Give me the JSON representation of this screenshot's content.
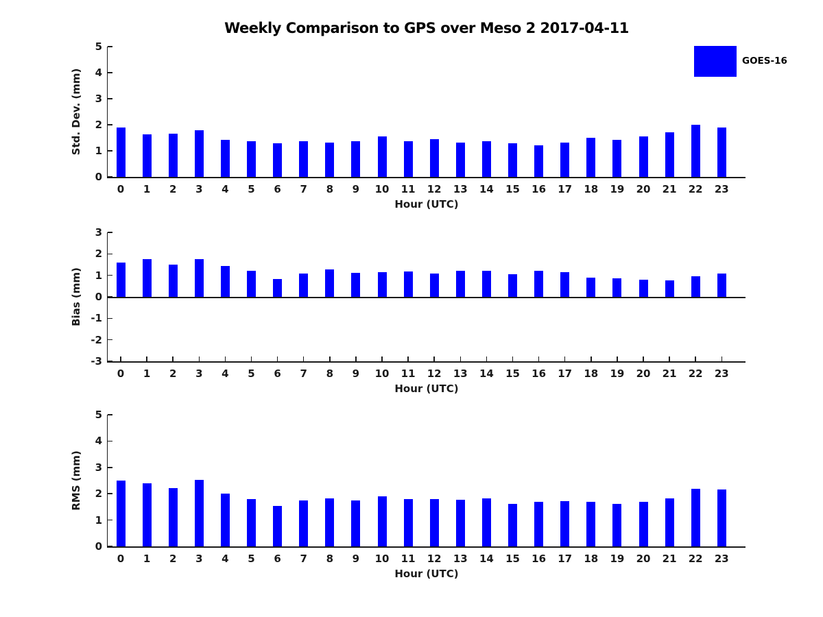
{
  "header": {
    "title": "Weekly Comparison to GPS over Meso 2 2017-04-11"
  },
  "legend": {
    "label": "GOES-16",
    "color": "#0000ff"
  },
  "colors": {
    "bar": "#0000ff",
    "axis": "#1a1a1a",
    "text": "#191919"
  },
  "chart_data": [
    {
      "type": "bar",
      "title": "Weekly Comparison to GPS over Meso 2 2017-04-11",
      "series_name": "GOES-16",
      "ylabel": "Std. Dev. (mm)",
      "xlabel": "Hour (UTC)",
      "ylim": [
        0,
        5
      ],
      "yticks": [
        0,
        1,
        2,
        3,
        4,
        5
      ],
      "categories": [
        "0",
        "1",
        "2",
        "3",
        "4",
        "5",
        "6",
        "7",
        "8",
        "9",
        "10",
        "11",
        "12",
        "13",
        "14",
        "15",
        "16",
        "17",
        "18",
        "19",
        "20",
        "21",
        "22",
        "23"
      ],
      "values": [
        1.9,
        1.63,
        1.65,
        1.8,
        1.42,
        1.36,
        1.28,
        1.38,
        1.31,
        1.36,
        1.55,
        1.38,
        1.46,
        1.31,
        1.36,
        1.29,
        1.21,
        1.32,
        1.5,
        1.42,
        1.55,
        1.72,
        2.0,
        1.9
      ]
    },
    {
      "type": "bar",
      "series_name": "GOES-16",
      "ylabel": "Bias (mm)",
      "xlabel": "Hour (UTC)",
      "ylim": [
        -3,
        3
      ],
      "yticks": [
        -3,
        -2,
        -1,
        0,
        1,
        2,
        3
      ],
      "categories": [
        "0",
        "1",
        "2",
        "3",
        "4",
        "5",
        "6",
        "7",
        "8",
        "9",
        "10",
        "11",
        "12",
        "13",
        "14",
        "15",
        "16",
        "17",
        "18",
        "19",
        "20",
        "21",
        "22",
        "23"
      ],
      "values": [
        1.6,
        1.77,
        1.5,
        1.77,
        1.43,
        1.2,
        0.83,
        1.08,
        1.28,
        1.12,
        1.14,
        1.17,
        1.08,
        1.22,
        1.21,
        1.05,
        1.2,
        1.16,
        0.89,
        0.85,
        0.8,
        0.77,
        0.96,
        1.08
      ]
    },
    {
      "type": "bar",
      "series_name": "GOES-16",
      "ylabel": "RMS (mm)",
      "xlabel": "Hour (UTC)",
      "ylim": [
        0,
        5
      ],
      "yticks": [
        0,
        1,
        2,
        3,
        4,
        5
      ],
      "categories": [
        "0",
        "1",
        "2",
        "3",
        "4",
        "5",
        "6",
        "7",
        "8",
        "9",
        "10",
        "11",
        "12",
        "13",
        "14",
        "15",
        "16",
        "17",
        "18",
        "19",
        "20",
        "21",
        "22",
        "23"
      ],
      "values": [
        2.5,
        2.4,
        2.22,
        2.52,
        2.0,
        1.8,
        1.53,
        1.75,
        1.82,
        1.74,
        1.9,
        1.8,
        1.79,
        1.76,
        1.81,
        1.61,
        1.68,
        1.73,
        1.7,
        1.62,
        1.7,
        1.83,
        2.19,
        2.17
      ]
    }
  ]
}
